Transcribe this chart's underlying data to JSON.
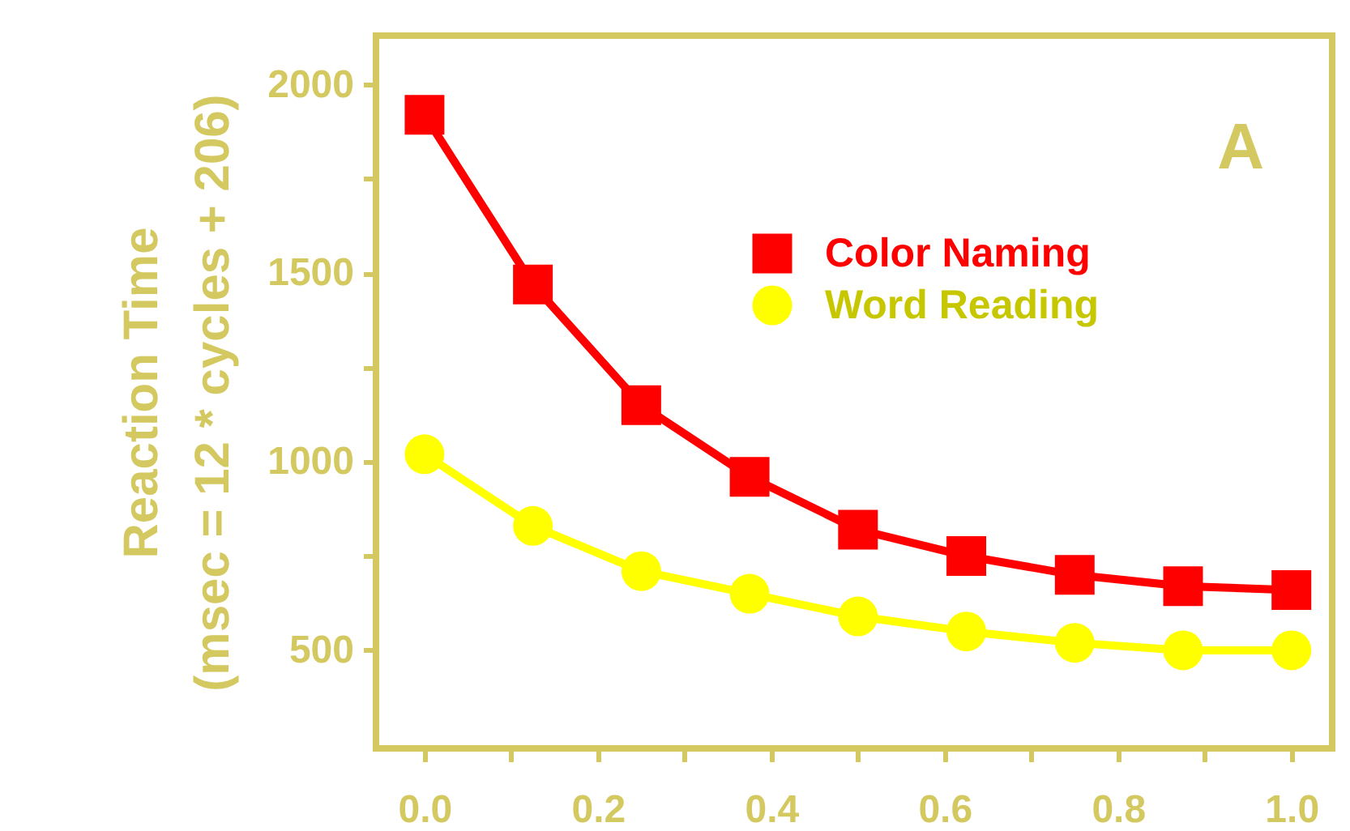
{
  "chart_data": {
    "type": "line",
    "ylabel": "Reaction Time\n(msec = 12 * cycles + 206)",
    "annotations": [
      "A"
    ],
    "x": [
      0,
      0.125,
      0.25,
      0.375,
      0.5,
      0.625,
      0.75,
      0.875,
      1
    ],
    "series": [
      {
        "name": "Color Naming",
        "color": "#ff0000",
        "marker": "square",
        "values": [
          1920,
          1470,
          1150,
          960,
          820,
          750,
          700,
          670,
          660
        ]
      },
      {
        "name": "Word Reading",
        "color": "#ffff00",
        "marker": "circle",
        "values": [
          1020,
          830,
          710,
          650,
          590,
          550,
          520,
          500,
          500
        ]
      }
    ],
    "xlim": [
      -0.056,
      1.047
    ],
    "ylim": [
      240,
      2130
    ],
    "xticks": [
      {
        "value": 0,
        "label": "0.0"
      },
      {
        "value": 0.1,
        "label": null
      },
      {
        "value": 0.2,
        "label": "0.2"
      },
      {
        "value": 0.3,
        "label": null
      },
      {
        "value": 0.4,
        "label": "0.4"
      },
      {
        "value": 0.5,
        "label": null
      },
      {
        "value": 0.6,
        "label": "0.6"
      },
      {
        "value": 0.7,
        "label": null
      },
      {
        "value": 0.8,
        "label": "0.8"
      },
      {
        "value": 0.9,
        "label": null
      },
      {
        "value": 1,
        "label": "1.0"
      }
    ],
    "yticks": [
      500,
      {
        "value": 750,
        "label": null
      },
      1000,
      {
        "value": 1250,
        "label": null
      },
      1500,
      {
        "value": 1750,
        "label": null
      },
      2000
    ],
    "grid": false,
    "legend": "top right",
    "line_style": "solid"
  }
}
